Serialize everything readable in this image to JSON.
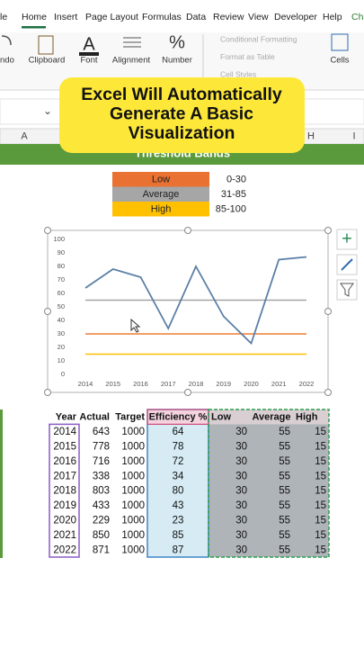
{
  "ribbon": {
    "tabs": [
      "le",
      "Home",
      "Insert",
      "Page Layout",
      "Formulas",
      "Data",
      "Review",
      "View",
      "Developer",
      "Help",
      "Cha"
    ],
    "groups": [
      "ndo",
      "Clipboard",
      "Font",
      "Alignment",
      "Number",
      "Cells"
    ],
    "styles": [
      "Conditional Formatting",
      "Format as Table",
      "Cell Styles"
    ]
  },
  "columns": [
    "A",
    "H",
    "I"
  ],
  "banner": "Threshold Bands",
  "caption": {
    "lines": [
      "Excel Will Automatically",
      "Generate A Basic",
      "Visualization"
    ]
  },
  "bands": [
    {
      "label": "Low",
      "range": "0-30",
      "color": "#e97132"
    },
    {
      "label": "Average",
      "range": "31-85",
      "color": "#a6a6a6"
    },
    {
      "label": "High",
      "range": "85-100",
      "color": "#ffc000"
    }
  ],
  "chart_data": {
    "type": "line",
    "categories": [
      "2014",
      "2015",
      "2016",
      "2017",
      "2018",
      "2019",
      "2020",
      "2021",
      "2022"
    ],
    "series": [
      {
        "name": "Efficiency %",
        "color": "#5b7fa6",
        "values": [
          64,
          78,
          72,
          34,
          80,
          43,
          23,
          85,
          87
        ]
      },
      {
        "name": "Low",
        "color": "#ed7d31",
        "values": [
          30,
          30,
          30,
          30,
          30,
          30,
          30,
          30,
          30
        ]
      },
      {
        "name": "Average",
        "color": "#a5a5a5",
        "values": [
          55,
          55,
          55,
          55,
          55,
          55,
          55,
          55,
          55
        ]
      },
      {
        "name": "High",
        "color": "#ffc000",
        "values": [
          15,
          15,
          15,
          15,
          15,
          15,
          15,
          15,
          15
        ]
      }
    ],
    "ylim": [
      0,
      100
    ],
    "yticks": [
      0,
      10,
      20,
      30,
      40,
      50,
      60,
      70,
      80,
      90,
      100
    ],
    "grid": false
  },
  "table": {
    "header": [
      "Year",
      "Actual",
      "Target",
      "Efficiency %",
      "Low",
      "Average",
      "High"
    ],
    "rows": [
      [
        2014,
        643,
        1000,
        64,
        30,
        55,
        15
      ],
      [
        2015,
        778,
        1000,
        78,
        30,
        55,
        15
      ],
      [
        2016,
        716,
        1000,
        72,
        30,
        55,
        15
      ],
      [
        2017,
        338,
        1000,
        34,
        30,
        55,
        15
      ],
      [
        2018,
        803,
        1000,
        80,
        30,
        55,
        15
      ],
      [
        2019,
        433,
        1000,
        43,
        30,
        55,
        15
      ],
      [
        2020,
        229,
        1000,
        23,
        30,
        55,
        15
      ],
      [
        2021,
        850,
        1000,
        85,
        30,
        55,
        15
      ],
      [
        2022,
        871,
        1000,
        87,
        30,
        55,
        15
      ]
    ]
  }
}
